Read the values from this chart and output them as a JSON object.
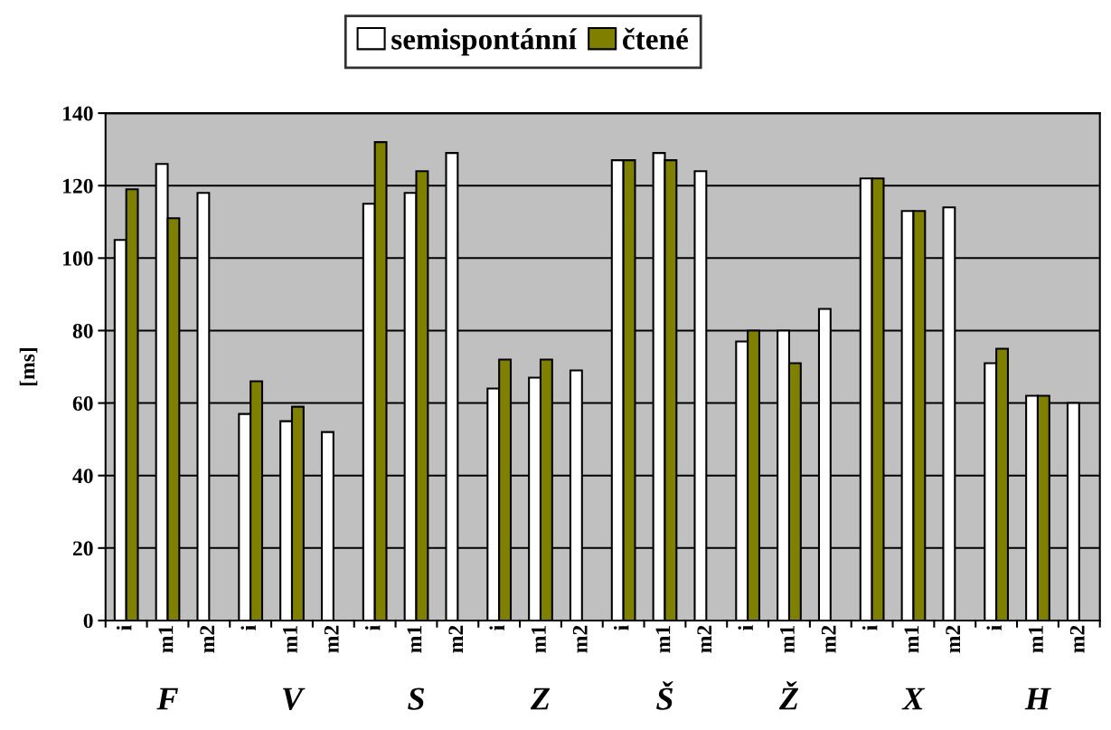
{
  "chart_data": {
    "type": "bar",
    "categories": [
      "i",
      "m1",
      "m2",
      "i",
      "m1",
      "m2",
      "i",
      "m1",
      "m2",
      "i",
      "m1",
      "m2",
      "i",
      "m1",
      "m2",
      "i",
      "m1",
      "m2",
      "i",
      "m1",
      "m2",
      "i",
      "m1",
      "m2"
    ],
    "series": [
      {
        "name": "semispontánní",
        "color": "#ffffff",
        "values": [
          105,
          126,
          118,
          57,
          55,
          52,
          115,
          118,
          129,
          64,
          67,
          69,
          127,
          129,
          124,
          77,
          80,
          86,
          122,
          113,
          114,
          71,
          62,
          60
        ]
      },
      {
        "name": "čtené",
        "color": "#808000",
        "values": [
          119,
          111,
          null,
          66,
          59,
          null,
          132,
          124,
          null,
          72,
          72,
          null,
          127,
          127,
          null,
          80,
          71,
          null,
          122,
          113,
          null,
          75,
          62,
          null
        ]
      }
    ],
    "ylabel": "[ms]",
    "ylim": [
      0,
      140
    ],
    "yticks": [
      0,
      20,
      40,
      60,
      80,
      100,
      120,
      140
    ],
    "annotations": [
      "F",
      "V",
      "S",
      "Z",
      "Š",
      "Ž",
      "X",
      "H"
    ],
    "grid": "y",
    "legend": "top"
  }
}
